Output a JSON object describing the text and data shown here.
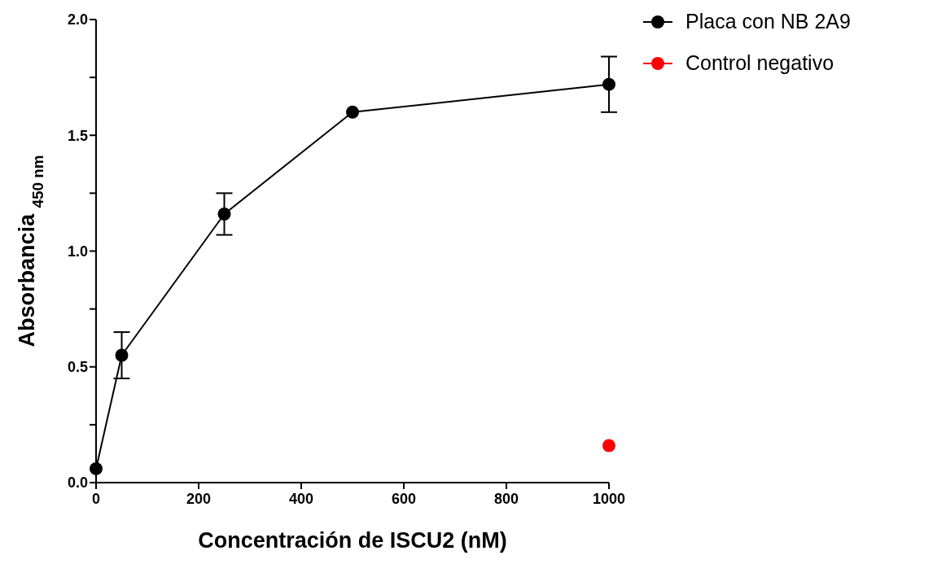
{
  "chart_data": {
    "type": "line",
    "xlabel": "Concentración de ISCU2 (nM)",
    "ylabel": "Absorbancia $_{450 nm}$",
    "series": [
      {
        "name": "Placa con NB 2A9",
        "color": "#000000",
        "x": [
          0,
          50,
          250,
          500,
          1000
        ],
        "values": [
          0.06,
          0.55,
          1.16,
          1.6,
          1.72
        ],
        "errors": [
          null,
          0.1,
          0.09,
          null,
          0.12
        ]
      },
      {
        "name": "Control negativo",
        "type": "scatter",
        "color": "#ff0000",
        "x": [
          1000
        ],
        "values": [
          0.16
        ]
      }
    ],
    "xlim": [
      0,
      1000
    ],
    "xticks": [
      0,
      200,
      400,
      600,
      800,
      1000
    ],
    "ylim": [
      0,
      2
    ],
    "yticks": [
      {
        "value": 0,
        "label": "0.0"
      },
      {
        "value": 0.25,
        "label": null
      },
      {
        "value": 0.5,
        "label": "0.5"
      },
      {
        "value": 0.75,
        "label": null
      },
      {
        "value": 1,
        "label": "1.0"
      },
      {
        "value": 1.25,
        "label": null
      },
      {
        "value": 1.5,
        "label": "1.5"
      },
      {
        "value": 1.75,
        "label": null
      },
      {
        "value": 2,
        "label": "2.0"
      }
    ],
    "grid": false,
    "legend": "top right",
    "marker": "circle",
    "line_style": "solid"
  }
}
